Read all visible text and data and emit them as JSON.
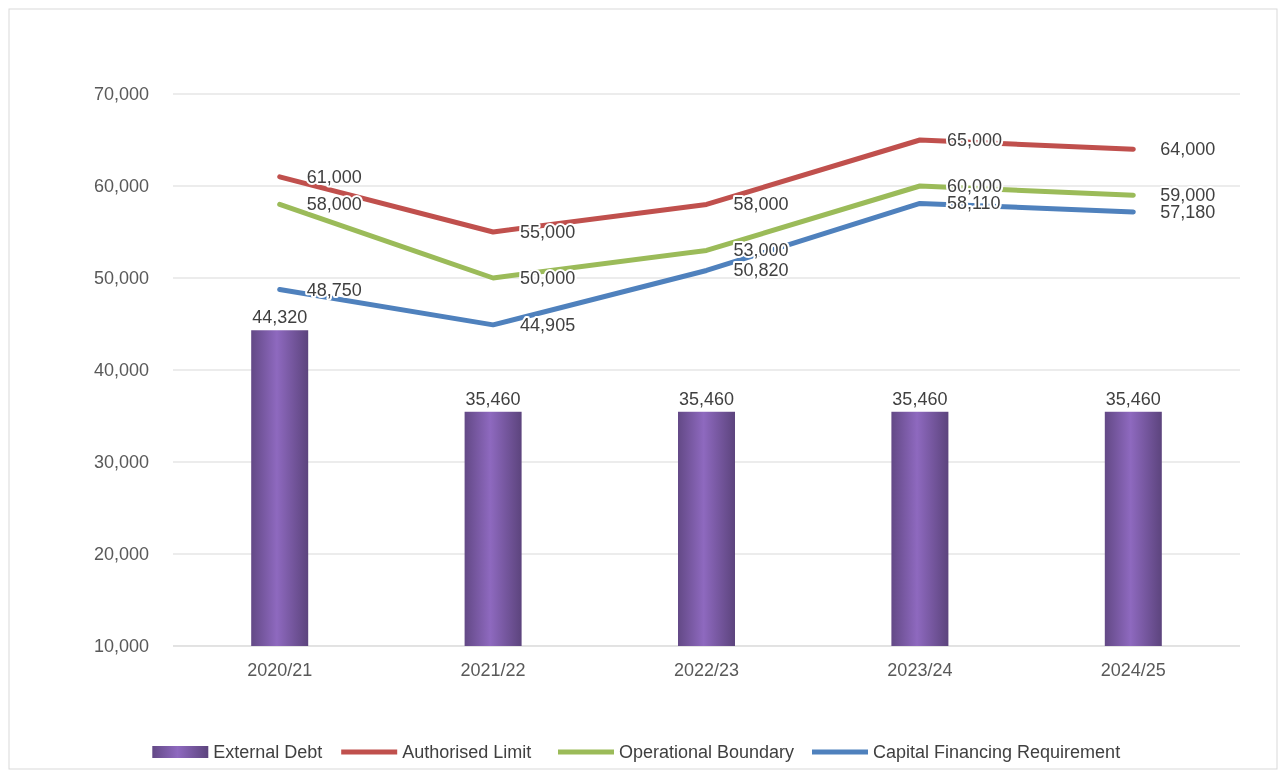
{
  "chart_data": {
    "type": "bar",
    "categories": [
      "2020/21",
      "2021/22",
      "2022/23",
      "2023/24",
      "2024/25"
    ],
    "series": [
      {
        "name": "External Debt",
        "color": "#7b5ba6",
        "values": [
          44320,
          35460,
          35460,
          35460,
          35460
        ],
        "value_labels": [
          "44,320",
          "35,460",
          "35,460",
          "35,460",
          "35,460"
        ]
      },
      {
        "name": "Authorised Limit",
        "type": "line",
        "color": "#c0504d",
        "values": [
          61000,
          55000,
          58000,
          65000,
          64000
        ],
        "value_labels": [
          "61,000",
          "55,000",
          "58,000",
          "65,000",
          "64,000"
        ]
      },
      {
        "name": "Operational Boundary",
        "type": "line",
        "color": "#9bbb59",
        "values": [
          58000,
          50000,
          53000,
          60000,
          59000
        ],
        "value_labels": [
          "58,000",
          "50,000",
          "53,000",
          "60,000",
          "59,000"
        ]
      },
      {
        "name": "Capital Financing Requirement",
        "type": "line",
        "color": "#4f81bd",
        "values": [
          48750,
          44905,
          50820,
          58110,
          57180
        ],
        "value_labels": [
          "48,750",
          "44,905",
          "50,820",
          "58,110",
          "57,180"
        ]
      }
    ],
    "ylim": [
      10000,
      70000
    ],
    "yticks": [
      {
        "value": 10000,
        "label": "10,000"
      },
      {
        "value": 20000,
        "label": "20,000"
      },
      {
        "value": 30000,
        "label": "30,000"
      },
      {
        "value": 40000,
        "label": "40,000"
      },
      {
        "value": 50000,
        "label": "50,000"
      },
      {
        "value": 60000,
        "label": "60,000"
      },
      {
        "value": 70000,
        "label": "70,000"
      }
    ],
    "grid": "y",
    "legend": "bottom",
    "marker": "none",
    "line_style": "solid"
  }
}
